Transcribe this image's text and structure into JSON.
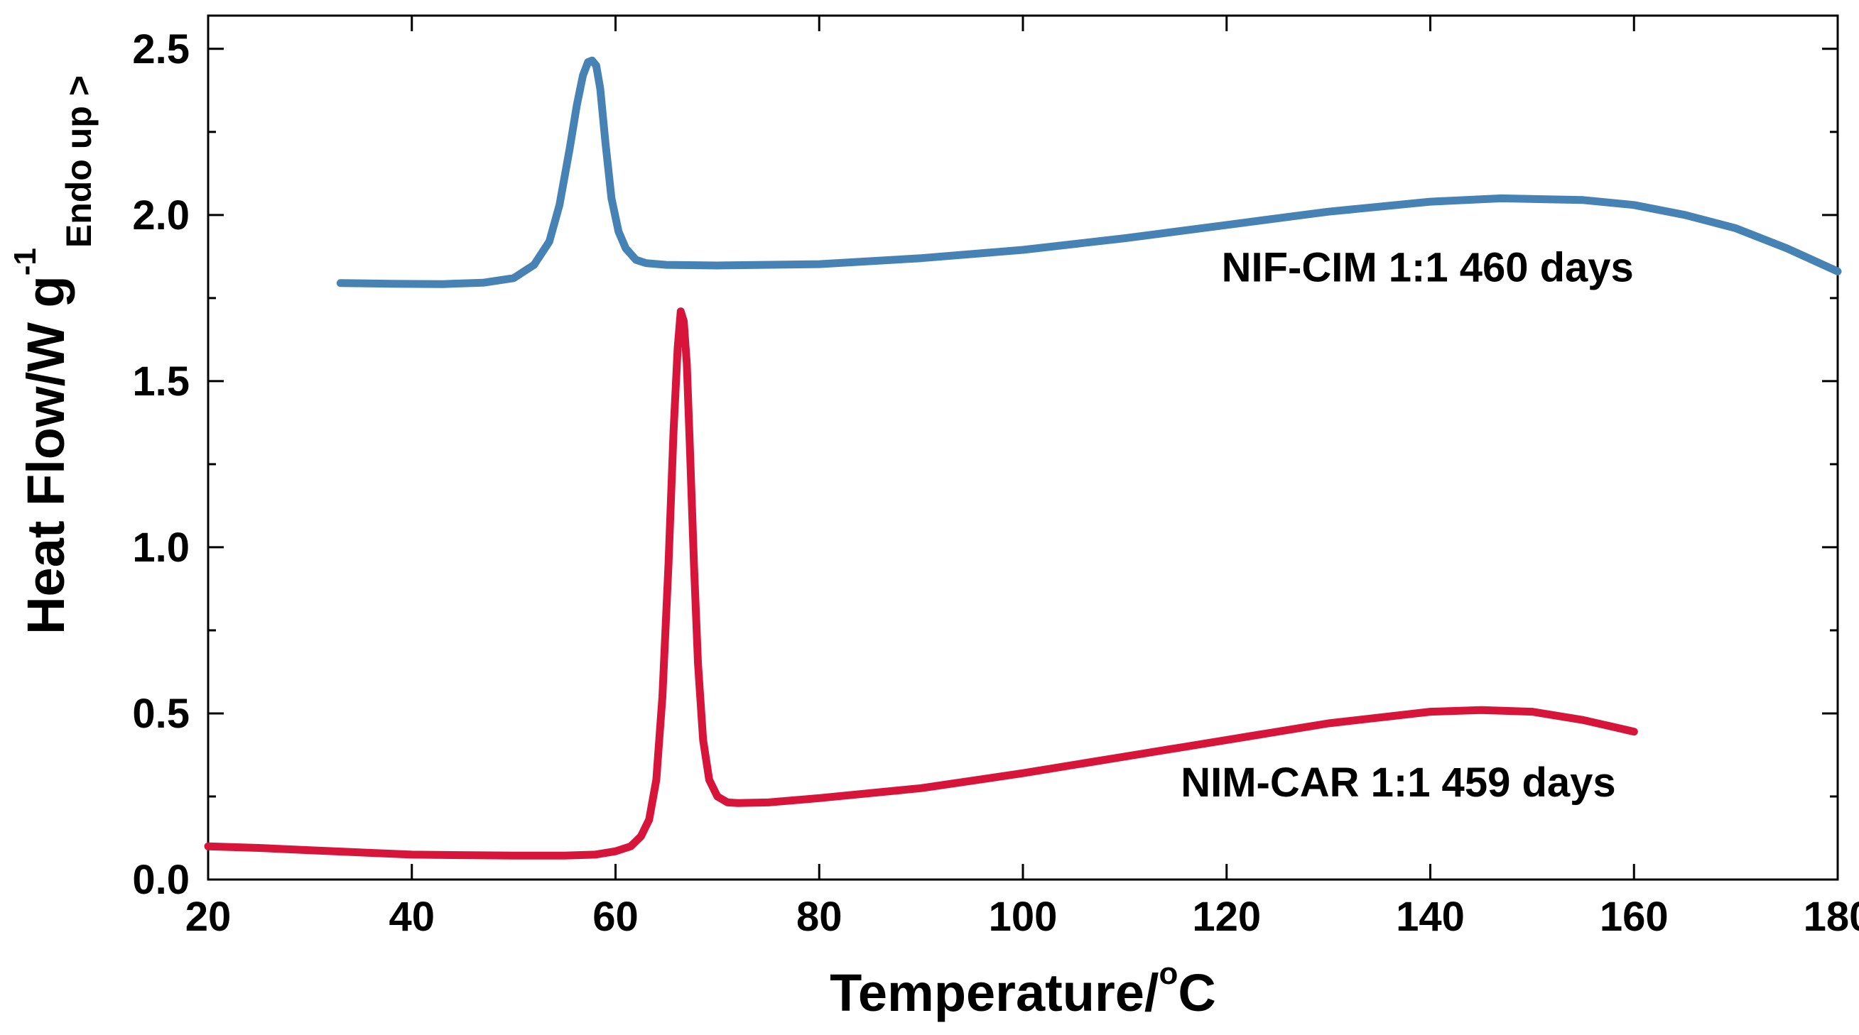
{
  "chart_data": {
    "type": "line",
    "title": "",
    "xlabel": {
      "main": "Temperature/",
      "sup": "o",
      "end": "C"
    },
    "ylabel": {
      "main": "Heat Flow/W g",
      "sup": "-1",
      "sub": "Endo up >"
    },
    "xlim": [
      20,
      180
    ],
    "ylim": [
      0.0,
      2.6
    ],
    "xticks": [
      20,
      40,
      60,
      80,
      100,
      120,
      140,
      160,
      180
    ],
    "xtick_labels": [
      "20",
      "40",
      "60",
      "80",
      "100",
      "120",
      "140",
      "160",
      "180"
    ],
    "yticks": [
      0.0,
      0.5,
      1.0,
      1.5,
      2.0,
      2.5
    ],
    "ytick_labels": [
      "0.0",
      "0.5",
      "1.0",
      "1.5",
      "2.0",
      "2.5"
    ],
    "grid": false,
    "legend": "none",
    "series": [
      {
        "name": "NIF-CIM 1:1 460 days",
        "color": "#4682B4",
        "label": "NIF-CIM 1:1 460 days",
        "label_at": [
          119.5,
          1.8
        ],
        "x": [
          33,
          38,
          43,
          47,
          50,
          52,
          53.5,
          54.5,
          55.5,
          56.2,
          56.8,
          57.3,
          57.7,
          58.1,
          58.5,
          59,
          59.6,
          60.3,
          61,
          62,
          63,
          65,
          70,
          80,
          90,
          100,
          110,
          120,
          130,
          140,
          147,
          155,
          160,
          165,
          170,
          175,
          180
        ],
        "y": [
          1.795,
          1.793,
          1.792,
          1.796,
          1.81,
          1.85,
          1.92,
          2.03,
          2.2,
          2.33,
          2.42,
          2.46,
          2.465,
          2.45,
          2.38,
          2.22,
          2.05,
          1.95,
          1.9,
          1.865,
          1.855,
          1.85,
          1.848,
          1.852,
          1.87,
          1.895,
          1.93,
          1.97,
          2.01,
          2.04,
          2.05,
          2.045,
          2.03,
          2.0,
          1.96,
          1.9,
          1.83
        ]
      },
      {
        "name": "NIM-CAR 1:1 459 days",
        "color": "#D7153A",
        "label": "NIM-CAR 1:1 459 days",
        "label_at": [
          115.5,
          0.25
        ],
        "x": [
          20,
          25,
          30,
          40,
          50,
          55,
          58,
          60,
          61.5,
          62.5,
          63.3,
          64,
          64.6,
          65.2,
          65.7,
          66.1,
          66.4,
          66.7,
          67,
          67.3,
          67.7,
          68.1,
          68.6,
          69.2,
          70,
          71,
          72,
          75,
          80,
          90,
          100,
          110,
          120,
          130,
          140,
          145,
          150,
          155,
          160
        ],
        "y": [
          0.1,
          0.095,
          0.088,
          0.075,
          0.072,
          0.072,
          0.075,
          0.085,
          0.1,
          0.13,
          0.18,
          0.3,
          0.55,
          0.95,
          1.35,
          1.6,
          1.71,
          1.68,
          1.55,
          1.3,
          0.95,
          0.65,
          0.42,
          0.3,
          0.25,
          0.232,
          0.23,
          0.232,
          0.245,
          0.275,
          0.32,
          0.37,
          0.42,
          0.47,
          0.505,
          0.51,
          0.505,
          0.48,
          0.445
        ]
      }
    ]
  }
}
